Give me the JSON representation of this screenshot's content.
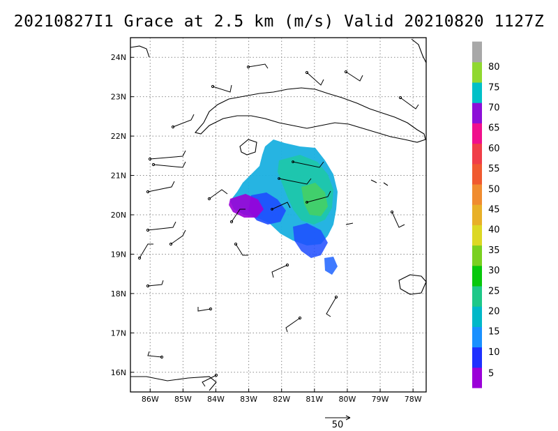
{
  "title": "20210827I1 Grace at 2.5 km (m/s) Valid 20210820 1127Z",
  "map": {
    "lon_labels": [
      "86W",
      "85W",
      "84W",
      "83W",
      "82W",
      "81W",
      "80W",
      "79W",
      "78W"
    ],
    "lat_labels": [
      "24N",
      "23N",
      "22N",
      "21N",
      "20N",
      "19N",
      "18N",
      "17N",
      "16N"
    ],
    "lon_range": [
      -86.6,
      -77.6
    ],
    "lat_range": [
      15.5,
      24.5
    ],
    "grid": true,
    "grid_style": "dotted"
  },
  "colorbar": {
    "labels": [
      "5",
      "10",
      "15",
      "20",
      "25",
      "30",
      "35",
      "40",
      "45",
      "50",
      "55",
      "60",
      "65",
      "70",
      "75",
      "80"
    ],
    "colors": [
      "#9b00d8",
      "#1e30ff",
      "#1a90ff",
      "#00b8c8",
      "#1ec888",
      "#08c80c",
      "#7ad020",
      "#dcd824",
      "#e8b028",
      "#f08c30",
      "#f05a30",
      "#f03e48",
      "#f0108c",
      "#8c10d8",
      "#00c0c8",
      "#90d830",
      "#a8a8a8"
    ]
  },
  "reference_vector": {
    "label": "50"
  },
  "features": {
    "coastline": "cuba-jamaica-yucatan",
    "wind_barbs": "radial-velocity-overlay"
  }
}
